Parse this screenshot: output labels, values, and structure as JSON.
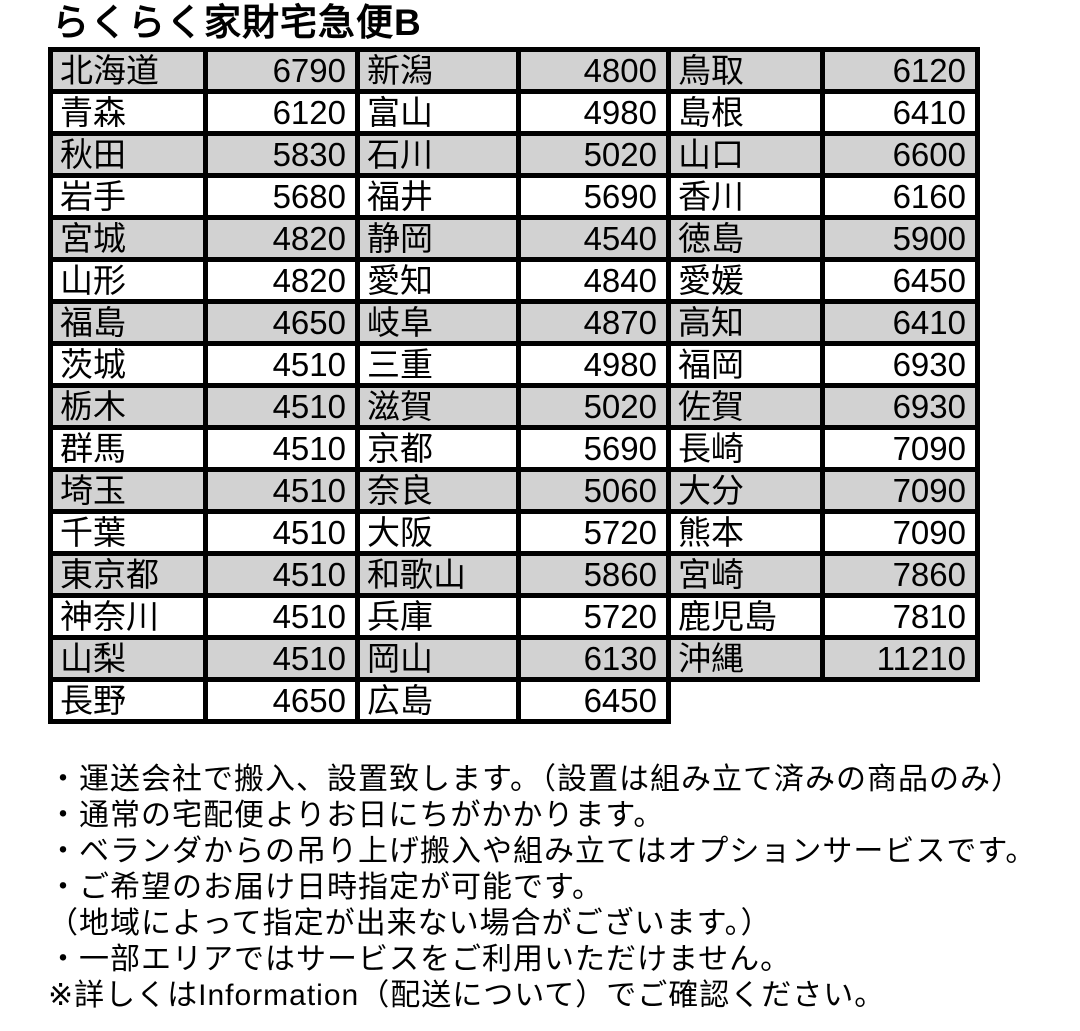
{
  "title": "らくらく家財宅急便B",
  "table": {
    "description": "prefecture-to-shipping-fee table, three prefecture/price column pairs",
    "rows": [
      {
        "cells": [
          {
            "name": "北海道",
            "price": "6790"
          },
          {
            "name": "新潟",
            "price": "4800"
          },
          {
            "name": "鳥取",
            "price": "6120"
          }
        ]
      },
      {
        "cells": [
          {
            "name": "青森",
            "price": "6120"
          },
          {
            "name": "富山",
            "price": "4980"
          },
          {
            "name": "島根",
            "price": "6410"
          }
        ]
      },
      {
        "cells": [
          {
            "name": "秋田",
            "price": "5830"
          },
          {
            "name": "石川",
            "price": "5020"
          },
          {
            "name": "山口",
            "price": "6600"
          }
        ]
      },
      {
        "cells": [
          {
            "name": "岩手",
            "price": "5680"
          },
          {
            "name": "福井",
            "price": "5690"
          },
          {
            "name": "香川",
            "price": "6160"
          }
        ]
      },
      {
        "cells": [
          {
            "name": "宮城",
            "price": "4820"
          },
          {
            "name": "静岡",
            "price": "4540"
          },
          {
            "name": "徳島",
            "price": "5900"
          }
        ]
      },
      {
        "cells": [
          {
            "name": "山形",
            "price": "4820"
          },
          {
            "name": "愛知",
            "price": "4840"
          },
          {
            "name": "愛媛",
            "price": "6450"
          }
        ]
      },
      {
        "cells": [
          {
            "name": "福島",
            "price": "4650"
          },
          {
            "name": "岐阜",
            "price": "4870"
          },
          {
            "name": "高知",
            "price": "6410"
          }
        ]
      },
      {
        "cells": [
          {
            "name": "茨城",
            "price": "4510"
          },
          {
            "name": "三重",
            "price": "4980"
          },
          {
            "name": "福岡",
            "price": "6930"
          }
        ]
      },
      {
        "cells": [
          {
            "name": "栃木",
            "price": "4510"
          },
          {
            "name": "滋賀",
            "price": "5020"
          },
          {
            "name": "佐賀",
            "price": "6930"
          }
        ]
      },
      {
        "cells": [
          {
            "name": "群馬",
            "price": "4510"
          },
          {
            "name": "京都",
            "price": "5690"
          },
          {
            "name": "長崎",
            "price": "7090"
          }
        ]
      },
      {
        "cells": [
          {
            "name": "埼玉",
            "price": "4510"
          },
          {
            "name": "奈良",
            "price": "5060"
          },
          {
            "name": "大分",
            "price": "7090"
          }
        ]
      },
      {
        "cells": [
          {
            "name": "千葉",
            "price": "4510"
          },
          {
            "name": "大阪",
            "price": "5720"
          },
          {
            "name": "熊本",
            "price": "7090"
          }
        ]
      },
      {
        "cells": [
          {
            "name": "東京都",
            "price": "4510"
          },
          {
            "name": "和歌山",
            "price": "5860"
          },
          {
            "name": "宮崎",
            "price": "7860"
          }
        ]
      },
      {
        "cells": [
          {
            "name": "神奈川",
            "price": "4510"
          },
          {
            "name": "兵庫",
            "price": "5720"
          },
          {
            "name": "鹿児島",
            "price": "7810"
          }
        ]
      },
      {
        "cells": [
          {
            "name": "山梨",
            "price": "4510"
          },
          {
            "name": "岡山",
            "price": "6130"
          },
          {
            "name": "沖縄",
            "price": "11210"
          }
        ]
      },
      {
        "cells": [
          {
            "name": "長野",
            "price": "4650"
          },
          {
            "name": "広島",
            "price": "6450"
          },
          null
        ]
      }
    ]
  },
  "notes": [
    "・運送会社で搬入、設置致します。（設置は組み立て済みの商品のみ）",
    "・通常の宅配便よりお日にちがかかります。",
    "・ベランダからの吊り上げ搬入や組み立てはオプションサービスです。",
    "・ご希望のお届け日時指定が可能です。",
    "（地域によって指定が出来ない場合がございます。）",
    "・一部エリアではサービスをご利用いただけません。",
    "※詳しくはInformation（配送について）でご確認ください。"
  ],
  "colors": {
    "row_shaded": "#d2d2d2",
    "row_plain": "#ffffff",
    "border": "#000000",
    "text": "#000000"
  }
}
